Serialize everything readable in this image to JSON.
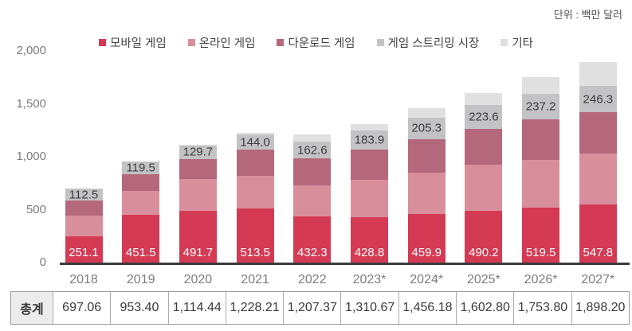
{
  "unit_note": "단위 : 백만 달러",
  "chart_data": {
    "type": "bar",
    "stacked": true,
    "title": "",
    "xlabel": "",
    "ylabel": "",
    "unit_label": "단위 : 백만 달러",
    "grid": false,
    "legend_position": "top-center",
    "categories": [
      "2018",
      "2019",
      "2020",
      "2021",
      "2022",
      "2023*",
      "2024*",
      "2025*",
      "2026*",
      "2027*"
    ],
    "y_axis": {
      "tick_labels": [
        "0",
        "500",
        "1,000",
        "1,500",
        "2,000"
      ],
      "tick_values": [
        0,
        500,
        1000,
        1500,
        2000
      ],
      "min": 0,
      "max": 2000
    },
    "series": [
      {
        "name": "모바일 게임",
        "color": "#d53a54",
        "show_labels": true,
        "label_color": "#ffffff",
        "label_pos": "bottom",
        "estimated": false,
        "values": [
          251.1,
          451.5,
          491.7,
          513.5,
          432.3,
          428.8,
          459.9,
          490.2,
          519.5,
          547.8
        ],
        "labels": [
          "251.1",
          "451.5",
          "491.7",
          "513.5",
          "432.3",
          "428.8",
          "459.9",
          "490.2",
          "519.5",
          "547.8"
        ]
      },
      {
        "name": "온라인 게임",
        "color": "#d98f9b",
        "show_labels": false,
        "estimated": true,
        "values": [
          195,
          227,
          300,
          307,
          294,
          354,
          392,
          432,
          448,
          481
        ]
      },
      {
        "name": "다운로드 게임",
        "color": "#b5687c",
        "show_labels": false,
        "estimated": true,
        "values": [
          138,
          155,
          185,
          246,
          255,
          282,
          314,
          343,
          387,
          392
        ]
      },
      {
        "name": "게임 스트리밍 시장",
        "color": "#c3c3c5",
        "show_labels": true,
        "label_color": "#3c3c3c",
        "label_pos": "middle",
        "estimated": false,
        "values": [
          112.5,
          119.5,
          129.7,
          144.0,
          162.6,
          183.9,
          205.3,
          223.6,
          237.2,
          246.3
        ],
        "labels": [
          "112.5",
          "119.5",
          "129.7",
          "144.0",
          "162.6",
          "183.9",
          "205.3",
          "223.6",
          "237.2",
          "246.3"
        ]
      },
      {
        "name": "기타",
        "color": "#e0e0e0",
        "show_labels": false,
        "estimated": true,
        "values": [
          0.46,
          0.4,
          8.04,
          17.71,
          63.47,
          61.97,
          84.98,
          114,
          162.1,
          231.1
        ]
      }
    ],
    "totals_row": {
      "header": "총계",
      "values": [
        "697.06",
        "953.40",
        "1,114.44",
        "1,228.21",
        "1,207.37",
        "1,310.67",
        "1,456.18",
        "1,602.80",
        "1,753.80",
        "1,898.20"
      ]
    }
  },
  "layout_colors": {
    "axis_text": "#7c7c7c",
    "baseline": "#3a3a3a",
    "legend_text": "#3f3f3f",
    "table_border": "#9b9b9b",
    "table_header_bg": "#ececec"
  }
}
